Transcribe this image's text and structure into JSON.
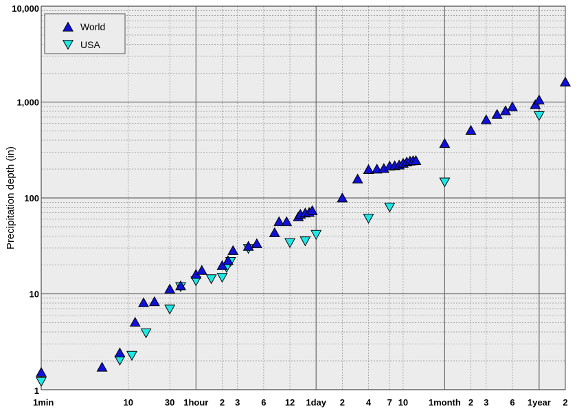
{
  "chart_data": {
    "type": "scatter",
    "title": "",
    "ylabel": "Precipitation depth (in)",
    "xlabel": "",
    "x_scale": "log",
    "y_scale": "log",
    "x_unit": "minutes",
    "xlim": [
      1,
      1051200
    ],
    "ylim": [
      1,
      10000
    ],
    "grid": true,
    "legend_position": "top-left",
    "x_ticks": [
      {
        "value": 1,
        "label": "1min",
        "major": true
      },
      {
        "value": 10,
        "label": "10",
        "major": false
      },
      {
        "value": 30,
        "label": "30",
        "major": false
      },
      {
        "value": 60,
        "label": "1hour",
        "major": true
      },
      {
        "value": 120,
        "label": "2",
        "major": false
      },
      {
        "value": 180,
        "label": "3",
        "major": false
      },
      {
        "value": 360,
        "label": "6",
        "major": false
      },
      {
        "value": 720,
        "label": "12",
        "major": false
      },
      {
        "value": 1440,
        "label": "1day",
        "major": true
      },
      {
        "value": 2880,
        "label": "2",
        "major": false
      },
      {
        "value": 5760,
        "label": "4",
        "major": false
      },
      {
        "value": 10080,
        "label": "7",
        "major": false
      },
      {
        "value": 14400,
        "label": "10",
        "major": false
      },
      {
        "value": 43200,
        "label": "1month",
        "major": true
      },
      {
        "value": 86400,
        "label": "2",
        "major": false
      },
      {
        "value": 129600,
        "label": "3",
        "major": false
      },
      {
        "value": 259200,
        "label": "6",
        "major": false
      },
      {
        "value": 525600,
        "label": "1year",
        "major": true
      },
      {
        "value": 1051200,
        "label": "2",
        "major": false
      }
    ],
    "y_ticks": [
      {
        "value": 1,
        "label": "1"
      },
      {
        "value": 10,
        "label": "10"
      },
      {
        "value": 100,
        "label": "100"
      },
      {
        "value": 1000,
        "label": "1,000"
      },
      {
        "value": 10000,
        "label": "10,000"
      }
    ],
    "series": [
      {
        "name": "World",
        "marker": "triangle-up",
        "color": "#1010d8",
        "points": [
          [
            1,
            1.5
          ],
          [
            5,
            1.7
          ],
          [
            8,
            2.4
          ],
          [
            12,
            5.0
          ],
          [
            15,
            8.0
          ],
          [
            20,
            8.2
          ],
          [
            30,
            11.1
          ],
          [
            40,
            12.0
          ],
          [
            60,
            15.8
          ],
          [
            70,
            17.4
          ],
          [
            120,
            19.5
          ],
          [
            140,
            22.0
          ],
          [
            160,
            28.0
          ],
          [
            240,
            31.0
          ],
          [
            300,
            33.0
          ],
          [
            480,
            43.0
          ],
          [
            540,
            56.0
          ],
          [
            660,
            56.0
          ],
          [
            900,
            63.0
          ],
          [
            950,
            67.0
          ],
          [
            1080,
            69.0
          ],
          [
            1200,
            70.0
          ],
          [
            1300,
            73.0
          ],
          [
            2880,
            99.0
          ],
          [
            4320,
            156.0
          ],
          [
            5760,
            196.0
          ],
          [
            7200,
            198.0
          ],
          [
            8640,
            201.0
          ],
          [
            10080,
            213.0
          ],
          [
            11520,
            215.0
          ],
          [
            12960,
            218.0
          ],
          [
            14400,
            228.0
          ],
          [
            15840,
            235.0
          ],
          [
            17280,
            240.0
          ],
          [
            18720,
            242.0
          ],
          [
            20160,
            243.0
          ],
          [
            43200,
            366.0
          ],
          [
            86400,
            502.0
          ],
          [
            129600,
            647.0
          ],
          [
            172800,
            737.0
          ],
          [
            216000,
            803.0
          ],
          [
            259200,
            884.0
          ],
          [
            475200,
            930.0
          ],
          [
            525600,
            1042.0
          ],
          [
            1051200,
            1605.0
          ]
        ]
      },
      {
        "name": "USA",
        "marker": "triangle-down",
        "color": "#20e6e6",
        "points": [
          [
            1,
            1.23
          ],
          [
            8,
            2.05
          ],
          [
            11,
            2.3
          ],
          [
            16,
            3.95
          ],
          [
            30,
            7.0
          ],
          [
            40,
            12.0
          ],
          [
            60,
            13.8
          ],
          [
            90,
            14.5
          ],
          [
            120,
            15.0
          ],
          [
            135,
            19.0
          ],
          [
            150,
            22.0
          ],
          [
            240,
            30.0
          ],
          [
            720,
            34.5
          ],
          [
            1080,
            36.0
          ],
          [
            1440,
            42.0
          ],
          [
            5760,
            62.0
          ],
          [
            10080,
            81.0
          ],
          [
            43200,
            148.0
          ],
          [
            525600,
            729.0
          ]
        ]
      }
    ]
  }
}
